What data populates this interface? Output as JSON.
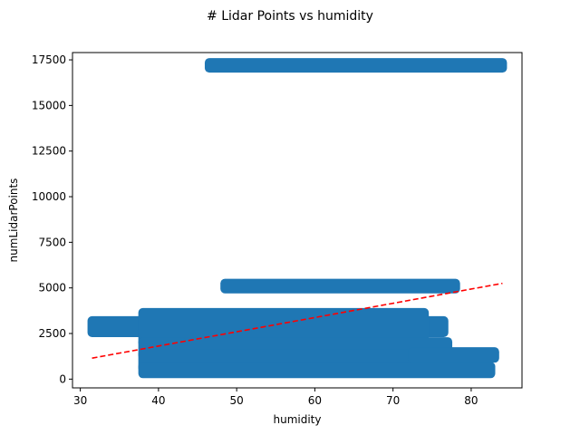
{
  "chart_data": {
    "type": "scatter",
    "title": "# Lidar Points vs humidity",
    "xlabel": "humidity",
    "ylabel": "numLidarPoints",
    "xlim": [
      29,
      86.5
    ],
    "ylim": [
      -480,
      17900
    ],
    "xticks": [
      30,
      40,
      50,
      60,
      70,
      80
    ],
    "yticks": [
      0,
      2500,
      5000,
      7500,
      10000,
      12500,
      15000,
      17500
    ],
    "xtick_labels": [
      "30",
      "40",
      "50",
      "60",
      "70",
      "80"
    ],
    "ytick_labels": [
      "0",
      "2500",
      "5000",
      "7500",
      "10000",
      "12500",
      "15000",
      "17500"
    ],
    "grid": false,
    "marker_color": "#1f77b4",
    "trend_color": "#ff0000",
    "series": [
      {
        "kind": "points",
        "bands": [
          {
            "x_start": 46.5,
            "x_end": 84.0,
            "y_low": 17050,
            "y_high": 17350
          },
          {
            "x_start": 48.5,
            "x_end": 78.0,
            "y_low": 4950,
            "y_high": 5250
          },
          {
            "x_start": 31.5,
            "x_end": 76.5,
            "y_low": 2550,
            "y_high": 3200
          },
          {
            "x_start": 38.0,
            "x_end": 74.0,
            "y_low": 2000,
            "y_high": 3650
          },
          {
            "x_start": 38.0,
            "x_end": 77.0,
            "y_low": 1300,
            "y_high": 2050
          },
          {
            "x_start": 38.0,
            "x_end": 80.0,
            "y_low": 600,
            "y_high": 1400
          },
          {
            "x_start": 38.0,
            "x_end": 82.5,
            "y_low": 300,
            "y_high": 700
          },
          {
            "x_start": 72.5,
            "x_end": 83.0,
            "y_low": 1150,
            "y_high": 1500
          }
        ]
      },
      {
        "kind": "trendline",
        "x": [
          31.5,
          84.0
        ],
        "y": [
          1150,
          5250
        ]
      }
    ]
  }
}
